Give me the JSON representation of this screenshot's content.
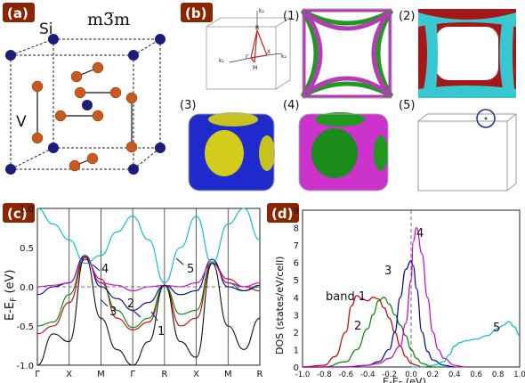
{
  "panels": {
    "a": {
      "label": "(a)",
      "space_group": "m3̅m",
      "atom_si": "Si",
      "atom_v": "V"
    },
    "b": {
      "label": "(b)",
      "bz_labels": {
        "R": "R",
        "M": "M",
        "Gamma": "Γ",
        "X": "X",
        "kz": "k₂",
        "ky": "k₂",
        "kx": "k₁"
      },
      "sub_labels": [
        "(1)",
        "(2)",
        "(3)",
        "(4)",
        "(5)"
      ]
    },
    "c": {
      "label": "(c)",
      "ylabel": "E-E",
      "ylabel_sub": "F",
      "ylabel_unit": " (eV)",
      "yticks": [
        "1.0",
        "0.5",
        "0.0",
        "-0.5",
        "-1.0"
      ],
      "kpoints": [
        "Γ",
        "X",
        "M",
        "Γ",
        "R",
        "X",
        "M",
        "R"
      ],
      "annotations": [
        "4",
        "3",
        "2",
        "1",
        "5"
      ]
    },
    "d": {
      "label": "(d)",
      "ylabel": "DOS (states/eV/cell)",
      "xlabel": "E-E",
      "xlabel_sub": "F",
      "xlabel_unit": " (eV)",
      "annotations": [
        "band 1",
        "2",
        "3",
        "4",
        "5"
      ]
    }
  },
  "chart_data": [
    {
      "type": "line",
      "panel": "c",
      "kpath": [
        "Γ",
        "X",
        "M",
        "Γ",
        "R",
        "X",
        "M",
        "R"
      ],
      "ylim": [
        -1.0,
        1.0
      ],
      "yticks": [
        1.0,
        0.5,
        0.0,
        -0.5,
        -1.0
      ],
      "fermi_level": 0.0,
      "series": [
        {
          "color": "#cc0000",
          "k": [
            0,
            0.5,
            1,
            1.5,
            2,
            2.5,
            3,
            3.5,
            4,
            4.5,
            5,
            5.5,
            6,
            6.5,
            7
          ],
          "y": [
            -0.6,
            -0.5,
            -0.2,
            0.35,
            0.1,
            -0.4,
            -0.55,
            -0.45,
            0.02,
            -0.5,
            -0.4,
            0.3,
            0.1,
            0.0,
            -0.05
          ]
        },
        {
          "color": "#008800",
          "k": [
            0,
            0.5,
            1,
            1.5,
            2,
            2.5,
            3,
            3.5,
            4,
            4.5,
            5,
            5.5,
            6,
            6.5,
            7
          ],
          "y": [
            -0.5,
            -0.45,
            -0.1,
            0.38,
            0.05,
            -0.3,
            -0.52,
            -0.4,
            0.02,
            -0.35,
            -0.3,
            0.32,
            0.05,
            -0.05,
            0.0
          ]
        },
        {
          "color": "#000088",
          "k": [
            0,
            0.5,
            1,
            1.5,
            2,
            2.5,
            3,
            3.5,
            4,
            4.5,
            5,
            5.5,
            6,
            6.5,
            7
          ],
          "y": [
            -0.1,
            0.0,
            0.05,
            0.4,
            0.0,
            -0.15,
            -0.3,
            -0.2,
            0.02,
            -0.1,
            -0.05,
            0.35,
            0.0,
            -0.05,
            0.02
          ]
        },
        {
          "color": "#cc00cc",
          "k": [
            0,
            0.5,
            1,
            1.5,
            2,
            2.5,
            3,
            3.5,
            4,
            4.5,
            5,
            5.5,
            6,
            6.5,
            7
          ],
          "y": [
            0.0,
            0.02,
            0.05,
            0.38,
            0.05,
            0.02,
            -0.05,
            0.0,
            0.02,
            0.0,
            0.05,
            0.3,
            0.05,
            0.0,
            0.05
          ]
        },
        {
          "color": "#00bbcc",
          "k": [
            0,
            0.5,
            1,
            1.5,
            2,
            2.5,
            3,
            3.5,
            4,
            4.5,
            5,
            5.5,
            6,
            6.5,
            7
          ],
          "y": [
            1.0,
            0.8,
            0.6,
            0.3,
            0.4,
            0.7,
            0.9,
            0.6,
            0.05,
            0.5,
            0.9,
            0.3,
            0.8,
            1.0,
            0.6
          ]
        },
        {
          "color": "#111111",
          "k": [
            0,
            0.5,
            1,
            1.5,
            2,
            2.5,
            3,
            3.5,
            4,
            4.5,
            5,
            5.5,
            6,
            6.5,
            7
          ],
          "y": [
            -1.0,
            -0.6,
            -0.7,
            0.38,
            -0.4,
            -0.8,
            -1.0,
            -0.7,
            0.02,
            -0.7,
            -0.9,
            0.3,
            -0.5,
            -0.8,
            -0.4
          ]
        }
      ]
    },
    {
      "type": "line",
      "panel": "d",
      "xlim": [
        -1.0,
        1.0
      ],
      "ylim": [
        0,
        9
      ],
      "xticks": [
        -1.0,
        -0.8,
        -0.6,
        -0.4,
        -0.2,
        0.0,
        0.2,
        0.4,
        0.6,
        0.8,
        1.0
      ],
      "yticks": [
        0,
        1,
        2,
        3,
        4,
        5,
        6,
        7,
        8,
        9
      ],
      "fermi_level": 0.0,
      "series": [
        {
          "color": "#cc0000",
          "x": [
            -1.0,
            -0.8,
            -0.7,
            -0.6,
            -0.55,
            -0.5,
            -0.45,
            -0.4,
            -0.35,
            -0.3,
            -0.25,
            -0.2,
            -0.15,
            -0.1,
            -0.05,
            0.0,
            0.05,
            0.1,
            0.2
          ],
          "y": [
            0,
            0.1,
            0.6,
            2.0,
            3.5,
            4.1,
            3.9,
            3.8,
            4.0,
            3.9,
            3.4,
            2.8,
            2.0,
            1.2,
            0.6,
            0.2,
            0.1,
            0.0,
            0.0
          ]
        },
        {
          "color": "#008800",
          "x": [
            -1.0,
            -0.8,
            -0.6,
            -0.5,
            -0.4,
            -0.35,
            -0.3,
            -0.25,
            -0.2,
            -0.15,
            -0.1,
            -0.05,
            0.0,
            0.05,
            0.1,
            0.2,
            0.3
          ],
          "y": [
            0,
            0.0,
            0.3,
            1.0,
            2.2,
            3.0,
            3.8,
            4.0,
            3.6,
            3.0,
            2.4,
            1.8,
            1.0,
            0.5,
            0.2,
            0.0,
            0.0
          ]
        },
        {
          "color": "#000099",
          "x": [
            -1.0,
            -0.6,
            -0.4,
            -0.3,
            -0.2,
            -0.15,
            -0.1,
            -0.05,
            0.0,
            0.02,
            0.05,
            0.1,
            0.15,
            0.2,
            0.3,
            0.4
          ],
          "y": [
            0,
            0.0,
            0.1,
            0.3,
            1.0,
            2.0,
            4.0,
            5.6,
            6.1,
            5.8,
            4.5,
            2.0,
            0.9,
            0.4,
            0.1,
            0.0
          ]
        },
        {
          "color": "#cc00cc",
          "x": [
            -1.0,
            -0.6,
            -0.4,
            -0.3,
            -0.2,
            -0.1,
            -0.05,
            0.0,
            0.02,
            0.05,
            0.1,
            0.15,
            0.2,
            0.25,
            0.3,
            0.4,
            0.5
          ],
          "y": [
            0,
            0.0,
            0.1,
            0.2,
            0.5,
            1.2,
            2.5,
            5.0,
            7.2,
            8.0,
            6.5,
            4.0,
            2.0,
            1.0,
            0.5,
            0.1,
            0.0
          ]
        },
        {
          "color": "#00bbcc",
          "x": [
            0.0,
            0.1,
            0.2,
            0.3,
            0.35,
            0.4,
            0.45,
            0.5,
            0.6,
            0.7,
            0.8,
            0.85,
            0.9,
            0.95,
            1.0
          ],
          "y": [
            0,
            0.0,
            0.1,
            0.3,
            0.7,
            1.2,
            1.4,
            1.5,
            1.6,
            1.8,
            2.2,
            2.4,
            2.6,
            2.3,
            1.8
          ]
        }
      ]
    }
  ]
}
